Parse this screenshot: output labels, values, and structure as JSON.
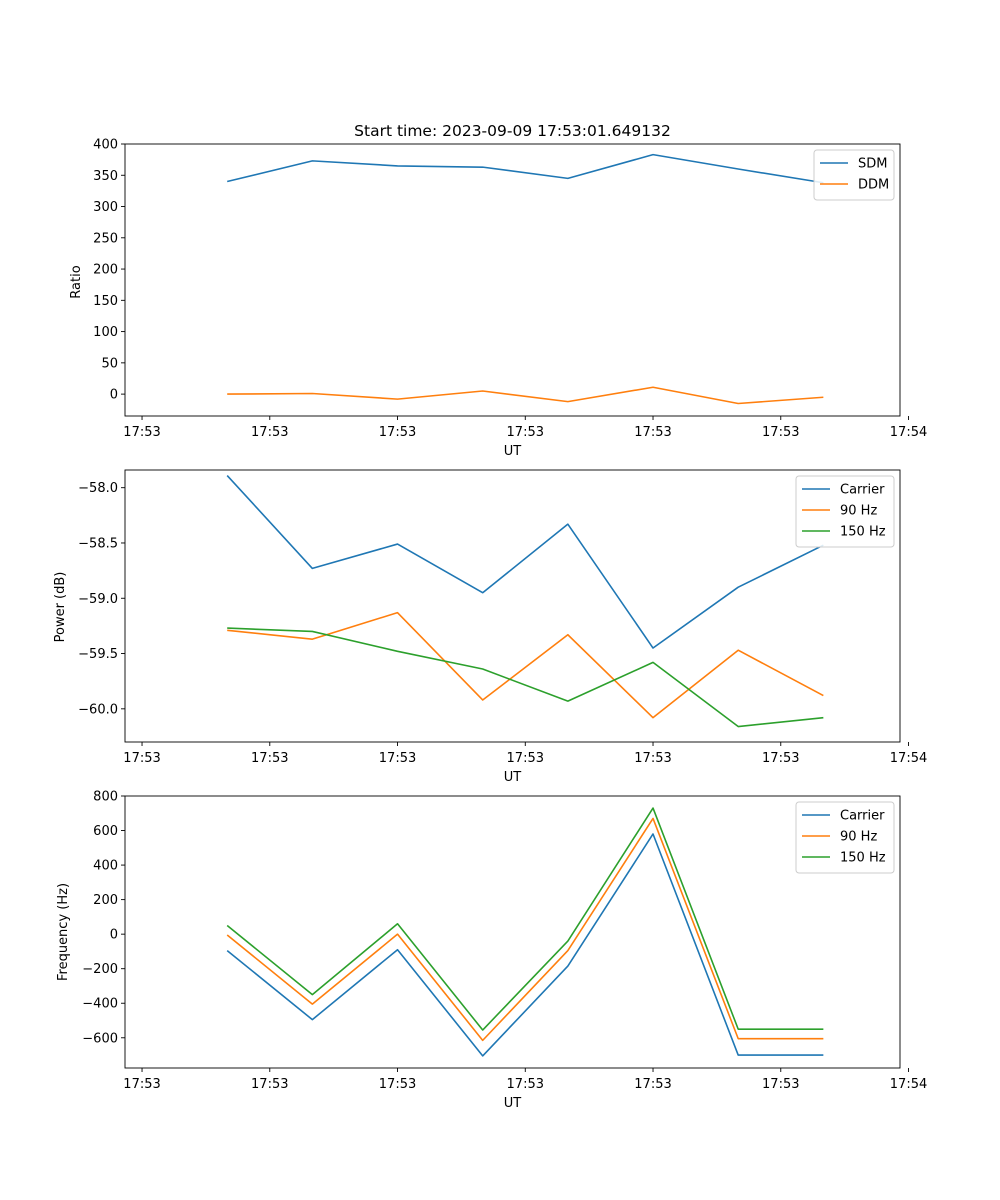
{
  "chart_data": [
    {
      "type": "line",
      "title": "Start time: 2023-09-09 17:53:01.649132",
      "xlabel": "UT",
      "ylabel": "Ratio",
      "xlim": [
        -0.2,
        8.9
      ],
      "ylim": [
        -35,
        400
      ],
      "x": [
        1,
        2,
        3,
        4,
        5,
        6,
        7,
        8
      ],
      "xtick_positions": [
        0,
        1.5,
        3,
        4.5,
        6,
        7.5,
        9
      ],
      "xtick_labels": [
        "17:53",
        "17:53",
        "17:53",
        "17:53",
        "17:53",
        "17:53",
        "17:54"
      ],
      "yticks": [
        0,
        50,
        100,
        150,
        200,
        250,
        300,
        350,
        400
      ],
      "ytick_labels": [
        "0",
        "50",
        "100",
        "150",
        "200",
        "250",
        "300",
        "350",
        "400"
      ],
      "legend_position": "top-right",
      "series": [
        {
          "name": "SDM",
          "color": "#1f77b4",
          "values": [
            340,
            373,
            365,
            363,
            345,
            383,
            360,
            338
          ]
        },
        {
          "name": "DDM",
          "color": "#ff7f0e",
          "values": [
            0,
            1,
            -8,
            5,
            -12,
            11,
            -15,
            -5
          ]
        }
      ]
    },
    {
      "type": "line",
      "title": "",
      "xlabel": "UT",
      "ylabel": "Power (dB)",
      "xlim": [
        -0.2,
        8.9
      ],
      "ylim": [
        -60.3,
        -57.84
      ],
      "x": [
        1,
        2,
        3,
        4,
        5,
        6,
        7,
        8
      ],
      "xtick_positions": [
        0,
        1.5,
        3,
        4.5,
        6,
        7.5,
        9
      ],
      "xtick_labels": [
        "17:53",
        "17:53",
        "17:53",
        "17:53",
        "17:53",
        "17:53",
        "17:54"
      ],
      "yticks": [
        -60.0,
        -59.5,
        -59.0,
        -58.5,
        -58.0
      ],
      "ytick_labels": [
        "−60.0",
        "−59.5",
        "−59.0",
        "−58.5",
        "−58.0"
      ],
      "legend_position": "top-right",
      "series": [
        {
          "name": "Carrier",
          "color": "#1f77b4",
          "values": [
            -57.89,
            -58.73,
            -58.51,
            -58.95,
            -58.33,
            -59.45,
            -58.9,
            -58.52
          ]
        },
        {
          "name": "90 Hz",
          "color": "#ff7f0e",
          "values": [
            -59.29,
            -59.37,
            -59.13,
            -59.92,
            -59.33,
            -60.08,
            -59.47,
            -59.88
          ]
        },
        {
          "name": "150 Hz",
          "color": "#2ca02c",
          "values": [
            -59.27,
            -59.3,
            -59.48,
            -59.64,
            -59.93,
            -59.58,
            -60.16,
            -60.08
          ]
        }
      ]
    },
    {
      "type": "line",
      "title": "",
      "xlabel": "UT",
      "ylabel": "Frequency (Hz)",
      "xlim": [
        -0.2,
        8.9
      ],
      "ylim": [
        -775,
        800
      ],
      "x": [
        1,
        2,
        3,
        4,
        5,
        6,
        7,
        8
      ],
      "xtick_positions": [
        0,
        1.5,
        3,
        4.5,
        6,
        7.5,
        9
      ],
      "xtick_labels": [
        "17:53",
        "17:53",
        "17:53",
        "17:53",
        "17:53",
        "17:53",
        "17:54"
      ],
      "yticks": [
        -600,
        -400,
        -200,
        0,
        200,
        400,
        600,
        800
      ],
      "ytick_labels": [
        "−600",
        "−400",
        "−200",
        "0",
        "200",
        "400",
        "600",
        "800"
      ],
      "legend_position": "top-right",
      "series": [
        {
          "name": "Carrier",
          "color": "#1f77b4",
          "values": [
            -95,
            -495,
            -90,
            -705,
            -185,
            580,
            -700,
            -700
          ]
        },
        {
          "name": "90 Hz",
          "color": "#ff7f0e",
          "values": [
            -5,
            -405,
            0,
            -615,
            -95,
            670,
            -605,
            -605
          ]
        },
        {
          "name": "150 Hz",
          "color": "#2ca02c",
          "values": [
            50,
            -350,
            60,
            -555,
            -40,
            730,
            -550,
            -550
          ]
        }
      ]
    }
  ]
}
